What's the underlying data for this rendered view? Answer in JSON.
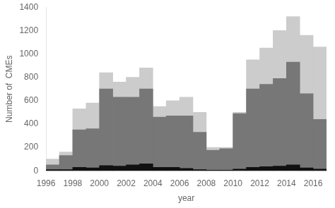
{
  "chart_data": {
    "type": "bar",
    "x": [
      1996,
      1997,
      1998,
      1999,
      2000,
      2001,
      2002,
      2003,
      2004,
      2005,
      2006,
      2007,
      2008,
      2009,
      2010,
      2011,
      2012,
      2013,
      2014,
      2015,
      2016
    ],
    "series": [
      {
        "color": "#cccccc",
        "values": [
          100,
          160,
          530,
          580,
          840,
          760,
          800,
          880,
          550,
          600,
          630,
          500,
          200,
          200,
          500,
          950,
          1050,
          1200,
          1320,
          1160,
          1060
        ]
      },
      {
        "color": "#777777",
        "values": [
          50,
          130,
          350,
          360,
          700,
          630,
          630,
          700,
          460,
          470,
          470,
          330,
          175,
          190,
          490,
          700,
          740,
          790,
          930,
          660,
          440
        ]
      },
      {
        "color": "#111111",
        "values": [
          10,
          10,
          30,
          25,
          45,
          40,
          50,
          60,
          30,
          30,
          20,
          10,
          5,
          5,
          15,
          30,
          35,
          40,
          50,
          25,
          15
        ]
      }
    ],
    "xlabel": "year",
    "ylabel": "Number of  CMEs",
    "xlim": [
      1996,
      2017
    ],
    "ylim": [
      0,
      1400
    ],
    "xticks": [
      1996,
      1998,
      2000,
      2002,
      2004,
      2006,
      2008,
      2010,
      2012,
      2014,
      2016
    ],
    "yticks": [
      0,
      200,
      400,
      600,
      800,
      1000,
      1200,
      1400
    ],
    "grid": false
  }
}
